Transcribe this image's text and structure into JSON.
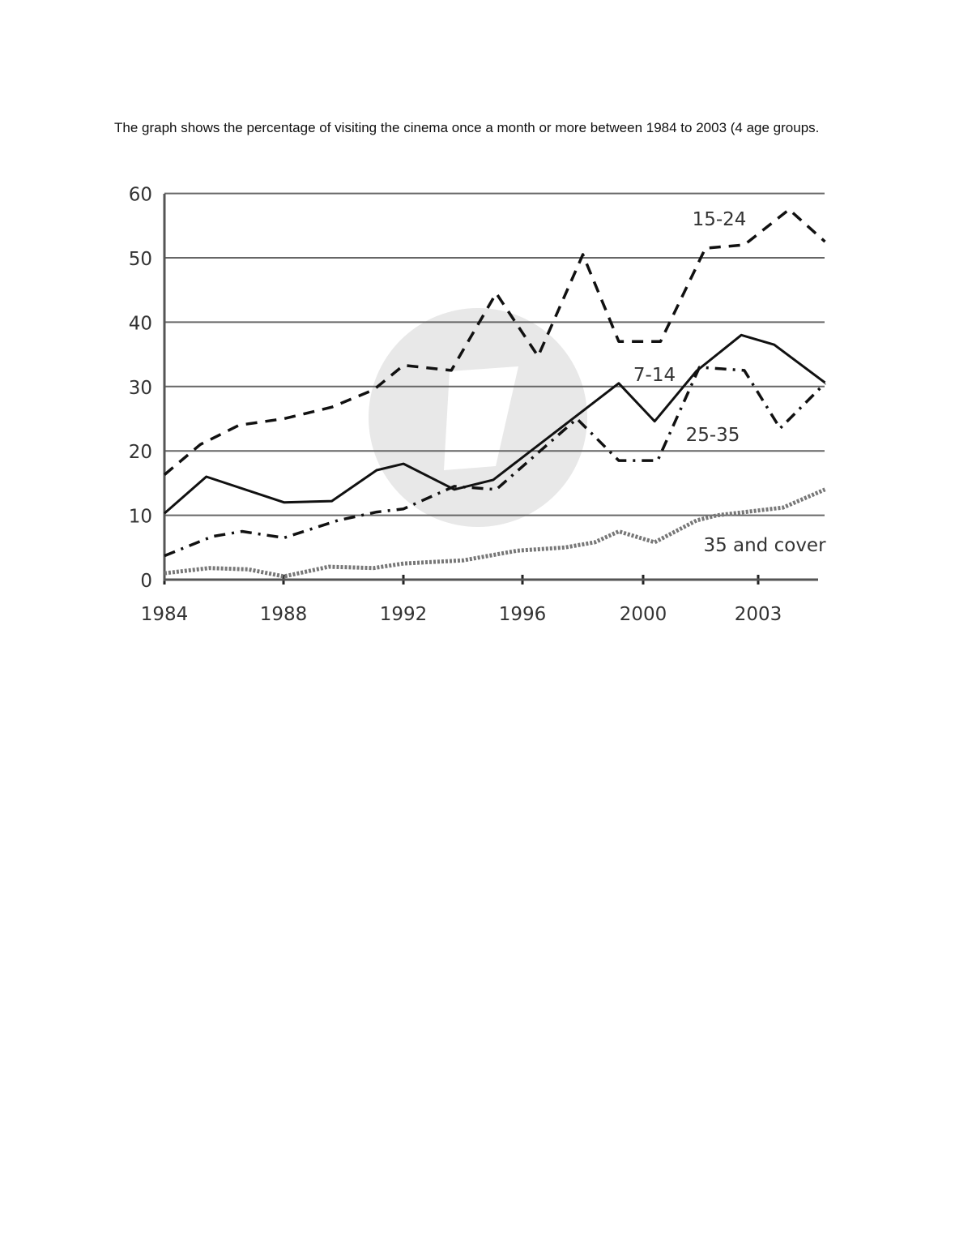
{
  "caption": "The graph shows the percentage of visiting the cinema once a month or more between 1984 to 2003 (4 age groups.",
  "chart_data": {
    "type": "line",
    "title": "",
    "xlabel": "",
    "ylabel": "",
    "ylim": [
      0,
      60
    ],
    "yticks": [
      0,
      10,
      20,
      30,
      40,
      50,
      60
    ],
    "xticks": [
      "1984",
      "1988",
      "1992",
      "1996",
      "2000",
      "2003"
    ],
    "grid": true,
    "legend_position": "inline labels",
    "series": [
      {
        "name": "7-14",
        "style": "solid",
        "label_text": "7-14",
        "points": [
          [
            1984.0,
            10.3
          ],
          [
            1985.4,
            16.0
          ],
          [
            1988.0,
            12.0
          ],
          [
            1989.6,
            12.2
          ],
          [
            1991.1,
            17.0
          ],
          [
            1992.0,
            18.0
          ],
          [
            1993.7,
            14.0
          ],
          [
            1995.0,
            15.5
          ],
          [
            1999.2,
            30.5
          ],
          [
            2000.4,
            24.6
          ],
          [
            2001.8,
            32.4
          ],
          [
            2003.3,
            38.0
          ],
          [
            2004.4,
            36.5
          ],
          [
            2006.1,
            30.6
          ]
        ]
      },
      {
        "name": "15-24",
        "style": "dashed",
        "label_text": "15-24",
        "points": [
          [
            1984.0,
            16.3
          ],
          [
            1985.2,
            21.0
          ],
          [
            1986.5,
            24.0
          ],
          [
            1988.0,
            25.0
          ],
          [
            1989.6,
            26.8
          ],
          [
            1991.0,
            29.5
          ],
          [
            1992.0,
            33.3
          ],
          [
            1993.6,
            32.5
          ],
          [
            1995.1,
            44.5
          ],
          [
            1996.5,
            34.7
          ],
          [
            1998.0,
            50.5
          ],
          [
            1999.2,
            37.0
          ],
          [
            2000.6,
            37.0
          ],
          [
            2002.1,
            51.5
          ],
          [
            2003.4,
            52.0
          ],
          [
            2004.9,
            57.5
          ],
          [
            2006.1,
            52.5
          ]
        ]
      },
      {
        "name": "25-35",
        "style": "dash-dot",
        "label_text": "25-35",
        "points": [
          [
            1984.0,
            3.7
          ],
          [
            1985.6,
            6.7
          ],
          [
            1986.6,
            7.5
          ],
          [
            1988.0,
            6.5
          ],
          [
            1989.8,
            9.2
          ],
          [
            1991.1,
            10.5
          ],
          [
            1992.0,
            11.0
          ],
          [
            1993.7,
            14.5
          ],
          [
            1995.1,
            14.0
          ],
          [
            1997.8,
            25.0
          ],
          [
            1999.2,
            18.5
          ],
          [
            2000.5,
            18.5
          ],
          [
            2001.9,
            33.0
          ],
          [
            2003.4,
            32.5
          ],
          [
            2004.6,
            23.5
          ],
          [
            2006.1,
            30.5
          ]
        ]
      },
      {
        "name": "35 and over",
        "style": "dotted",
        "label_text": "35 and cover",
        "points": [
          [
            1984.0,
            1.0
          ],
          [
            1985.5,
            1.8
          ],
          [
            1986.8,
            1.6
          ],
          [
            1988.0,
            0.5
          ],
          [
            1989.5,
            2.0
          ],
          [
            1991.0,
            1.8
          ],
          [
            1992.0,
            2.5
          ],
          [
            1994.0,
            3.0
          ],
          [
            1995.8,
            4.5
          ],
          [
            1997.4,
            5.0
          ],
          [
            1998.4,
            5.8
          ],
          [
            1999.2,
            7.5
          ],
          [
            2000.4,
            5.8
          ],
          [
            2001.8,
            9.2
          ],
          [
            2002.5,
            10.0
          ],
          [
            2004.7,
            11.2
          ],
          [
            2006.1,
            14.0
          ]
        ]
      }
    ]
  },
  "style": {
    "axis_color": "#555555",
    "grid_color": "#666666",
    "line_color": "#111111",
    "label_color": "#333333",
    "watermark_color": "#e6e6e6"
  }
}
